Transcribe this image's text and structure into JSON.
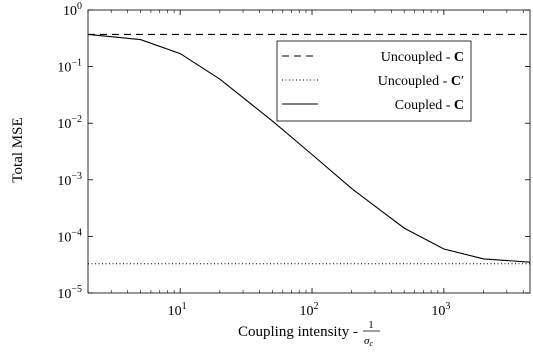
{
  "chart_data": {
    "type": "line",
    "title": "",
    "xlabel": "Coupling intensity -",
    "xlabel_fraction": {
      "numerator": "1",
      "denominator": "σ",
      "denominator_sub": "c"
    },
    "ylabel": "Total MSE",
    "x_scale": "log",
    "y_scale": "log",
    "xlim": [
      2,
      4500
    ],
    "ylim": [
      1e-05,
      1
    ],
    "grid": false,
    "legend_position": "top-right",
    "x_ticks": [
      {
        "value": 10,
        "base": "10",
        "exp": "1"
      },
      {
        "value": 100,
        "base": "10",
        "exp": "2"
      },
      {
        "value": 1000,
        "base": "10",
        "exp": "3"
      }
    ],
    "y_ticks": [
      {
        "value": 1,
        "base": "10",
        "exp": "0"
      },
      {
        "value": 0.1,
        "base": "10",
        "exp": "−1"
      },
      {
        "value": 0.01,
        "base": "10",
        "exp": "−2"
      },
      {
        "value": 0.001,
        "base": "10",
        "exp": "−3"
      },
      {
        "value": 0.0001,
        "base": "10",
        "exp": "−4"
      },
      {
        "value": 1e-05,
        "base": "10",
        "exp": "−5"
      }
    ],
    "series": [
      {
        "label_text": "Uncoupled - ",
        "label_bold": "C",
        "label_prime": "",
        "dash": "dashed",
        "color": "#000000",
        "x": [
          2,
          4500
        ],
        "y": [
          0.37,
          0.37
        ]
      },
      {
        "label_text": "Uncoupled - ",
        "label_bold": "C",
        "label_prime": "′",
        "dash": "dotted",
        "color": "#000000",
        "x": [
          2,
          4500
        ],
        "y": [
          3.3e-05,
          3.3e-05
        ]
      },
      {
        "label_text": "Coupled - ",
        "label_bold": "C",
        "label_prime": "",
        "dash": "solid",
        "color": "#000000",
        "x": [
          2,
          5,
          10,
          20,
          50,
          100,
          200,
          500,
          1000,
          2000,
          4500
        ],
        "y": [
          0.37,
          0.3,
          0.17,
          0.06,
          0.011,
          0.0028,
          0.0007,
          0.00014,
          6e-05,
          4e-05,
          3.5e-05
        ]
      }
    ]
  }
}
